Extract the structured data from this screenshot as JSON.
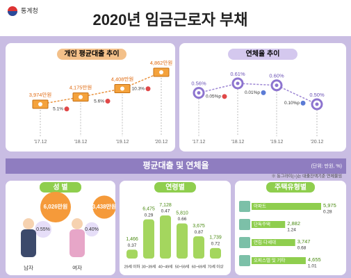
{
  "header": {
    "agency": "통계청",
    "title": "2020년 임금근로자 부채"
  },
  "loan_trend": {
    "title": "개인 평균대출 추이",
    "categories": [
      "'17.12",
      "'18.12",
      "'19.12",
      "'20.12"
    ],
    "values": [
      3974,
      4175,
      4408,
      4862
    ],
    "value_labels": [
      "3,974만원",
      "4,175만원",
      "4,408만원",
      "4,862만원"
    ],
    "changes": [
      "5.1%",
      "5.6%",
      "10.3%"
    ]
  },
  "delinquency_trend": {
    "title": "연체율 추이",
    "categories": [
      "'17.12",
      "'18.12",
      "'19.12",
      "'20.12"
    ],
    "values": [
      0.56,
      0.61,
      0.6,
      0.5
    ],
    "value_labels": [
      "0.56%",
      "0.61%",
      "0.60%",
      "0.50%"
    ],
    "changes": [
      "0.05%p",
      "0.01%p",
      "0.10%p"
    ]
  },
  "section": {
    "title": "평균대출 및 연체율",
    "unit": "(단위: 만원, %)",
    "note": "※ 동그라미(○)는 대출잔액기준 연체율임"
  },
  "by_sex": {
    "title": "성 별",
    "categories": [
      "남자",
      "여자"
    ],
    "loans": [
      6026,
      3438
    ],
    "loan_labels": [
      "6,026만원",
      "3,438만원"
    ],
    "rates": [
      0.55,
      0.4
    ],
    "rate_labels": [
      "0.55%",
      "0.40%"
    ]
  },
  "by_age": {
    "title": "연령별",
    "categories": [
      "29세 이하",
      "30~39세",
      "40~49세",
      "50~59세",
      "60~69세",
      "70세 이상"
    ],
    "loans": [
      1466,
      6475,
      7128,
      5810,
      3675,
      1739
    ],
    "loan_labels": [
      "1,466",
      "6,475",
      "7,128",
      "5,810",
      "3,675",
      "1,739"
    ],
    "rates": [
      0.37,
      0.29,
      0.47,
      0.66,
      0.87,
      0.72
    ]
  },
  "by_housing": {
    "title": "주택유형별",
    "categories": [
      "아파트",
      "단독주택",
      "연립·다세대",
      "오피스텔 및 기타"
    ],
    "loans": [
      5975,
      2882,
      3747,
      4655
    ],
    "loan_labels": [
      "5,975",
      "2,882",
      "3,747",
      "4,655"
    ],
    "rates": [
      0.28,
      1.24,
      0.68,
      1.01
    ]
  }
}
